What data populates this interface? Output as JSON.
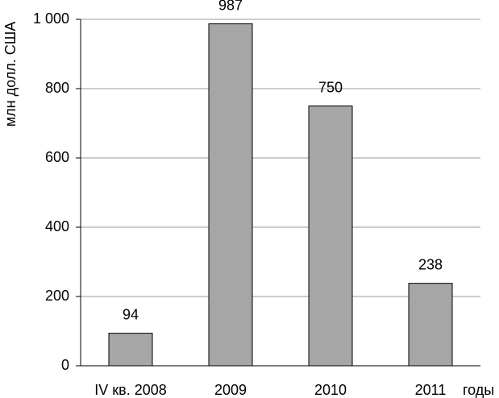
{
  "chart_data": {
    "type": "bar",
    "y_label": "млн долл. США",
    "x_label": "годы",
    "categories": [
      "IV кв. 2008",
      "2009",
      "2010",
      "2011"
    ],
    "values": [
      94,
      987,
      750,
      238
    ],
    "color": "#a6a6a6",
    "ylim": [
      0,
      1000
    ],
    "yticks": [
      0,
      200,
      400,
      600,
      800,
      {
        "value": 1000,
        "label": "1 000"
      }
    ],
    "grid": true
  }
}
